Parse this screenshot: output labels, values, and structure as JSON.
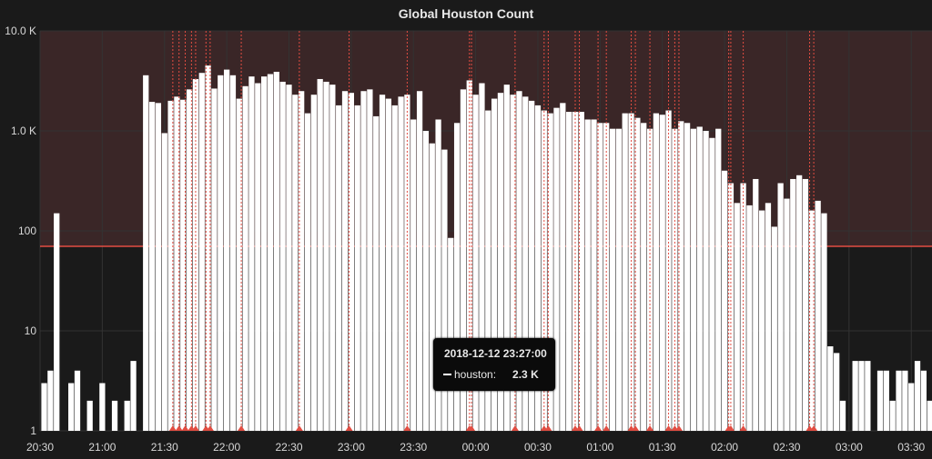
{
  "panel": {
    "title": "Global Houston Count"
  },
  "tooltip": {
    "time": "2018-12-12 23:27:00",
    "series_label": "houston:",
    "value": "2.3 K"
  },
  "colors": {
    "background": "#1a1a1a",
    "threshold_fill": "#3a2627",
    "threshold_line": "#e24d42",
    "annotation": "#e24d42",
    "bar": "#ffffff",
    "grid": "#333333"
  },
  "chart_data": {
    "type": "bar",
    "title": "Global Houston Count",
    "y_scale": "log10",
    "ylim": [
      1,
      10000
    ],
    "y_ticks": [
      {
        "value": 1,
        "label": "1"
      },
      {
        "value": 10,
        "label": "10"
      },
      {
        "value": 100,
        "label": "100"
      },
      {
        "value": 1000,
        "label": "1.0 K"
      },
      {
        "value": 10000,
        "label": "10.0 K"
      }
    ],
    "x_start": "20:30",
    "x_end": "03:40",
    "interval_minutes": 5,
    "x_ticks": [
      "20:30",
      "21:00",
      "21:30",
      "22:00",
      "22:30",
      "23:00",
      "23:30",
      "00:00",
      "00:30",
      "01:00",
      "01:30",
      "02:00",
      "02:30",
      "03:00",
      "03:30"
    ],
    "threshold": 70,
    "series": [
      {
        "name": "houston",
        "points": [
          {
            "x": "20:32",
            "y": 3
          },
          {
            "x": "20:35",
            "y": 4
          },
          {
            "x": "20:38",
            "y": 150
          },
          {
            "x": "20:45",
            "y": 3
          },
          {
            "x": "20:48",
            "y": 4
          },
          {
            "x": "20:54",
            "y": 2
          },
          {
            "x": "21:00",
            "y": 3
          },
          {
            "x": "21:06",
            "y": 2
          },
          {
            "x": "21:12",
            "y": 2
          },
          {
            "x": "21:15",
            "y": 5
          },
          {
            "x": "21:21",
            "y": 3600
          },
          {
            "x": "21:24",
            "y": 1950
          },
          {
            "x": "21:27",
            "y": 1900
          },
          {
            "x": "21:30",
            "y": 950
          },
          {
            "x": "21:33",
            "y": 2000
          },
          {
            "x": "21:36",
            "y": 2200
          },
          {
            "x": "21:39",
            "y": 2050
          },
          {
            "x": "21:42",
            "y": 2600
          },
          {
            "x": "21:45",
            "y": 3300
          },
          {
            "x": "21:48",
            "y": 3800
          },
          {
            "x": "21:51",
            "y": 4500
          },
          {
            "x": "21:54",
            "y": 2650
          },
          {
            "x": "21:57",
            "y": 3600
          },
          {
            "x": "22:00",
            "y": 4100
          },
          {
            "x": "22:03",
            "y": 3600
          },
          {
            "x": "22:06",
            "y": 2100
          },
          {
            "x": "22:09",
            "y": 2800
          },
          {
            "x": "22:12",
            "y": 3500
          },
          {
            "x": "22:15",
            "y": 3000
          },
          {
            "x": "22:18",
            "y": 3500
          },
          {
            "x": "22:21",
            "y": 3700
          },
          {
            "x": "22:24",
            "y": 3900
          },
          {
            "x": "22:27",
            "y": 3100
          },
          {
            "x": "22:30",
            "y": 2900
          },
          {
            "x": "22:33",
            "y": 2300
          },
          {
            "x": "22:36",
            "y": 2500
          },
          {
            "x": "22:39",
            "y": 1500
          },
          {
            "x": "22:42",
            "y": 2300
          },
          {
            "x": "22:45",
            "y": 3300
          },
          {
            "x": "22:48",
            "y": 3100
          },
          {
            "x": "22:51",
            "y": 2900
          },
          {
            "x": "22:54",
            "y": 1800
          },
          {
            "x": "22:57",
            "y": 2500
          },
          {
            "x": "23:00",
            "y": 2400
          },
          {
            "x": "23:03",
            "y": 1800
          },
          {
            "x": "23:06",
            "y": 2500
          },
          {
            "x": "23:09",
            "y": 2600
          },
          {
            "x": "23:12",
            "y": 1400
          },
          {
            "x": "23:15",
            "y": 2300
          },
          {
            "x": "23:18",
            "y": 2100
          },
          {
            "x": "23:21",
            "y": 1800
          },
          {
            "x": "23:24",
            "y": 2200
          },
          {
            "x": "23:27",
            "y": 2300
          },
          {
            "x": "23:30",
            "y": 1300
          },
          {
            "x": "23:33",
            "y": 2500
          },
          {
            "x": "23:36",
            "y": 1000
          },
          {
            "x": "23:39",
            "y": 750
          },
          {
            "x": "23:42",
            "y": 1300
          },
          {
            "x": "23:45",
            "y": 650
          },
          {
            "x": "23:48",
            "y": 85
          },
          {
            "x": "23:51",
            "y": 1200
          },
          {
            "x": "23:54",
            "y": 2600
          },
          {
            "x": "23:57",
            "y": 3200
          },
          {
            "x": "24:00",
            "y": 2300
          },
          {
            "x": "24:03",
            "y": 3000
          },
          {
            "x": "24:06",
            "y": 1600
          },
          {
            "x": "24:09",
            "y": 2100
          },
          {
            "x": "24:12",
            "y": 2400
          },
          {
            "x": "24:15",
            "y": 2900
          },
          {
            "x": "24:18",
            "y": 2300
          },
          {
            "x": "24:21",
            "y": 2500
          },
          {
            "x": "24:24",
            "y": 2200
          },
          {
            "x": "24:27",
            "y": 2000
          },
          {
            "x": "24:30",
            "y": 1800
          },
          {
            "x": "24:33",
            "y": 1600
          },
          {
            "x": "24:36",
            "y": 1500
          },
          {
            "x": "24:39",
            "y": 1700
          },
          {
            "x": "24:42",
            "y": 1900
          },
          {
            "x": "24:45",
            "y": 1550
          },
          {
            "x": "24:48",
            "y": 1550
          },
          {
            "x": "24:51",
            "y": 1550
          },
          {
            "x": "24:54",
            "y": 1300
          },
          {
            "x": "24:57",
            "y": 1300
          },
          {
            "x": "25:00",
            "y": 1200
          },
          {
            "x": "25:03",
            "y": 1200
          },
          {
            "x": "25:06",
            "y": 1050
          },
          {
            "x": "25:09",
            "y": 1050
          },
          {
            "x": "25:12",
            "y": 1500
          },
          {
            "x": "25:15",
            "y": 1500
          },
          {
            "x": "25:18",
            "y": 1350
          },
          {
            "x": "25:21",
            "y": 1200
          },
          {
            "x": "25:24",
            "y": 1050
          },
          {
            "x": "25:27",
            "y": 1500
          },
          {
            "x": "25:30",
            "y": 1450
          },
          {
            "x": "25:33",
            "y": 1600
          },
          {
            "x": "25:36",
            "y": 1050
          },
          {
            "x": "25:39",
            "y": 1250
          },
          {
            "x": "25:42",
            "y": 1200
          },
          {
            "x": "25:45",
            "y": 1050
          },
          {
            "x": "25:48",
            "y": 1100
          },
          {
            "x": "25:51",
            "y": 1000
          },
          {
            "x": "25:54",
            "y": 850
          },
          {
            "x": "25:57",
            "y": 1050
          },
          {
            "x": "26:00",
            "y": 400
          },
          {
            "x": "26:03",
            "y": 300
          },
          {
            "x": "26:06",
            "y": 190
          },
          {
            "x": "26:09",
            "y": 300
          },
          {
            "x": "26:12",
            "y": 180
          },
          {
            "x": "26:15",
            "y": 330
          },
          {
            "x": "26:18",
            "y": 160
          },
          {
            "x": "26:21",
            "y": 190
          },
          {
            "x": "26:24",
            "y": 110
          },
          {
            "x": "26:27",
            "y": 300
          },
          {
            "x": "26:30",
            "y": 210
          },
          {
            "x": "26:33",
            "y": 330
          },
          {
            "x": "26:36",
            "y": 360
          },
          {
            "x": "26:39",
            "y": 330
          },
          {
            "x": "26:42",
            "y": 160
          },
          {
            "x": "26:45",
            "y": 200
          },
          {
            "x": "26:48",
            "y": 150
          },
          {
            "x": "26:51",
            "y": 7
          },
          {
            "x": "26:54",
            "y": 6
          },
          {
            "x": "26:57",
            "y": 2
          },
          {
            "x": "27:03",
            "y": 5
          },
          {
            "x": "27:06",
            "y": 5
          },
          {
            "x": "27:09",
            "y": 5
          },
          {
            "x": "27:15",
            "y": 4
          },
          {
            "x": "27:18",
            "y": 4
          },
          {
            "x": "27:21",
            "y": 2
          },
          {
            "x": "27:24",
            "y": 4
          },
          {
            "x": "27:27",
            "y": 4
          },
          {
            "x": "27:30",
            "y": 3
          },
          {
            "x": "27:33",
            "y": 5
          },
          {
            "x": "27:36",
            "y": 4
          },
          {
            "x": "27:39",
            "y": 2
          }
        ]
      }
    ],
    "annotations": [
      "21:34",
      "21:37",
      "21:40",
      "21:43",
      "21:45",
      "21:50",
      "21:52",
      "22:07",
      "22:35",
      "22:59",
      "23:27",
      "23:57",
      "23:58",
      "00:19",
      "00:33",
      "00:35",
      "00:48",
      "00:50",
      "00:59",
      "01:03",
      "01:15",
      "01:17",
      "01:24",
      "01:33",
      "01:36",
      "01:38",
      "02:02",
      "02:03",
      "02:09",
      "02:41",
      "02:43"
    ],
    "tooltip_x": "23:57"
  }
}
